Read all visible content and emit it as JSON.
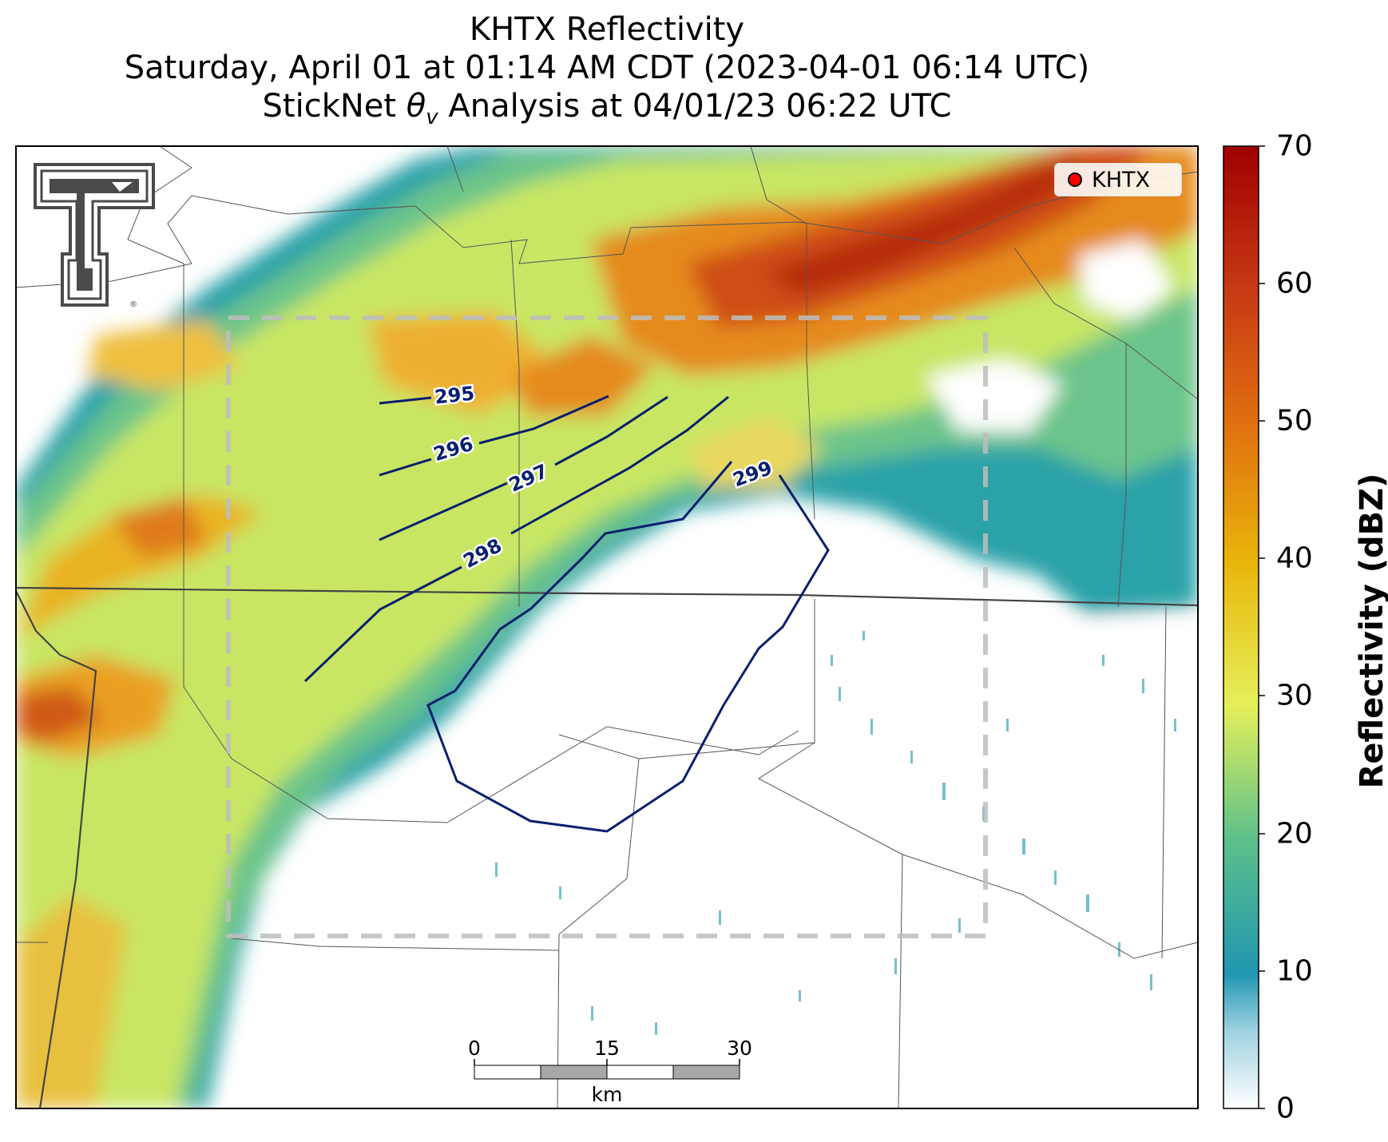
{
  "title": {
    "line1": "KHTX Reflectivity",
    "line2": "Saturday, April 01 at 01:14 AM CDT (2023-04-01 06:14 UTC)",
    "line3_prefix": "StickNet ",
    "line3_theta": "θ",
    "line3_sub": "v",
    "line3_suffix": " Analysis at 04/01/23 06:22 UTC"
  },
  "legend": {
    "label": "KHTX",
    "marker_color": "#ff0000"
  },
  "colorbar": {
    "label": "Reflectivity (dBZ)",
    "ticks": [
      "0",
      "10",
      "20",
      "30",
      "40",
      "50",
      "60",
      "70"
    ],
    "range": [
      0,
      70
    ],
    "colors": [
      "#ffffff",
      "#2096b0",
      "#5dc08a",
      "#e6f05a",
      "#e8b40a",
      "#e07010",
      "#c83a14",
      "#a00000"
    ]
  },
  "contours": [
    {
      "value": 295,
      "label": "295"
    },
    {
      "value": 296,
      "label": "296"
    },
    {
      "value": 297,
      "label": "297"
    },
    {
      "value": 298,
      "label": "298"
    },
    {
      "value": 299,
      "label": "299"
    }
  ],
  "contour_color": "#0a1f6e",
  "scale_bar": {
    "ticks": [
      "0",
      "15",
      "30"
    ],
    "unit": "km"
  },
  "logo": {
    "name": "Texas Tech Double T",
    "registered": "®"
  }
}
